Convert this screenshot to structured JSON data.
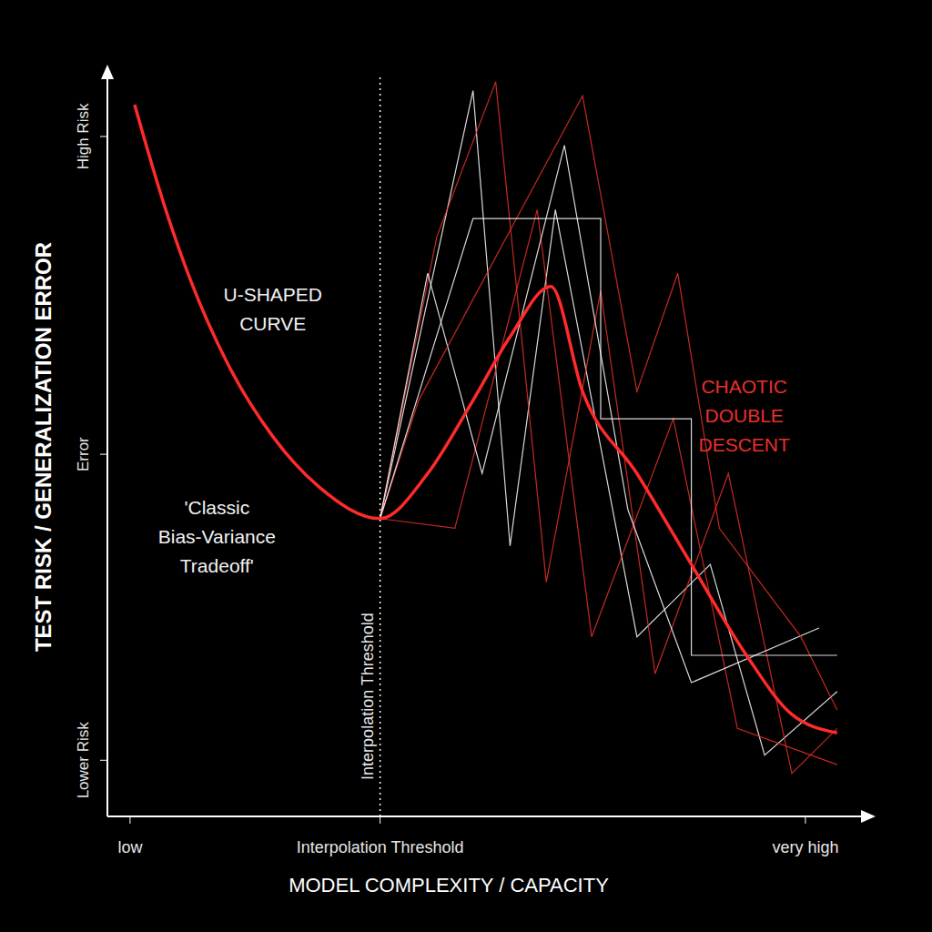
{
  "chart_data": {
    "type": "line",
    "x_label": "MODEL COMPLEXITY / CAPACITY",
    "y_label": "TEST RISK / GENERALIZATION ERROR",
    "xlim": [
      0,
      10
    ],
    "ylim": [
      0,
      10
    ],
    "xticks": [
      {
        "value": 0.3,
        "label": "low"
      },
      {
        "value": 3.61,
        "label": "Interpolation Threshold"
      },
      {
        "value": 9.24,
        "label": "very high"
      }
    ],
    "yticks": [
      {
        "value": 0.76,
        "label": "Lower Risk"
      },
      {
        "value": 4.9,
        "label": "Error"
      },
      {
        "value": 9.2,
        "label": "High Risk"
      }
    ],
    "grid": false,
    "reference_line": {
      "x": 3.61,
      "label": "Interpolation Threshold",
      "line_style": "dotted",
      "color": "#ffffff"
    },
    "annotations": [
      {
        "text": "U-SHAPED CURVE",
        "x": 2.19,
        "y": 6.86,
        "color": "#f2f2f2"
      },
      {
        "text": "'Classic Bias-Variance Tradeoff'",
        "x": 1.45,
        "y": 3.78,
        "color": "#f2f2f2"
      },
      {
        "text": "CHAOTIC DOUBLE DESCENT",
        "x": 8.43,
        "y": 5.42,
        "color": "#e8302a"
      }
    ],
    "series": [
      {
        "color": "#ff2a2a",
        "line_style": "solid",
        "x": [
          0.36,
          0.75,
          1.11,
          1.59,
          2.19,
          2.8,
          3.61,
          4.24,
          4.84,
          5.33,
          5.87,
          6.29,
          7.01,
          7.73,
          8.46,
          9.06,
          9.66
        ],
        "values": [
          9.63,
          8.28,
          7.23,
          6.13,
          5.14,
          4.46,
          4.03,
          4.64,
          5.63,
          6.49,
          7.17,
          5.75,
          4.64,
          3.41,
          2.18,
          1.38,
          1.13
        ]
      },
      {
        "color": "#ffffff",
        "line_style": "solid",
        "x": [
          3.61,
          4.84,
          5.33,
          5.93,
          7.01,
          7.98,
          8.7,
          9.66
        ],
        "values": [
          4.03,
          9.82,
          3.66,
          8.21,
          2.43,
          3.41,
          0.83,
          1.69
        ]
      },
      {
        "color": "#e8302a",
        "line_style": "solid",
        "x": [
          3.61,
          4.36,
          5.14,
          5.81,
          6.53,
          7.25,
          8.22,
          9.06,
          9.66
        ],
        "values": [
          4.03,
          7.84,
          9.94,
          3.17,
          7.11,
          1.93,
          4.64,
          0.58,
          1.19
        ]
      },
      {
        "color": "#e8302a",
        "line_style": "solid",
        "x": [
          3.61,
          4.6,
          5.69,
          6.41,
          7.49,
          8.34,
          9.66
        ],
        "values": [
          4.03,
          3.9,
          8.21,
          2.43,
          5.38,
          1.19,
          0.7
        ]
      },
      {
        "color": "#ffffff",
        "line_style": "solid",
        "x": [
          3.61,
          4.24,
          4.96,
          6.05,
          6.89,
          7.73,
          9.42
        ],
        "values": [
          4.03,
          7.35,
          4.64,
          9.08,
          4.15,
          1.81,
          2.55
        ]
      },
      {
        "color": "#e8302a",
        "line_style": "solid",
        "x": [
          3.61,
          4.12,
          6.29,
          7.01,
          7.55,
          8.1,
          9.18,
          9.66
        ],
        "values": [
          4.03,
          5.63,
          9.75,
          5.75,
          7.35,
          3.9,
          2.43,
          1.44
        ]
      },
      {
        "color": "#ffffff",
        "line_style": "solid",
        "x": [
          3.61,
          4.84,
          6.53,
          6.53,
          7.73,
          7.73,
          9.66
        ],
        "values": [
          4.03,
          8.09,
          8.09,
          5.38,
          5.38,
          2.18,
          2.18
        ]
      }
    ]
  }
}
